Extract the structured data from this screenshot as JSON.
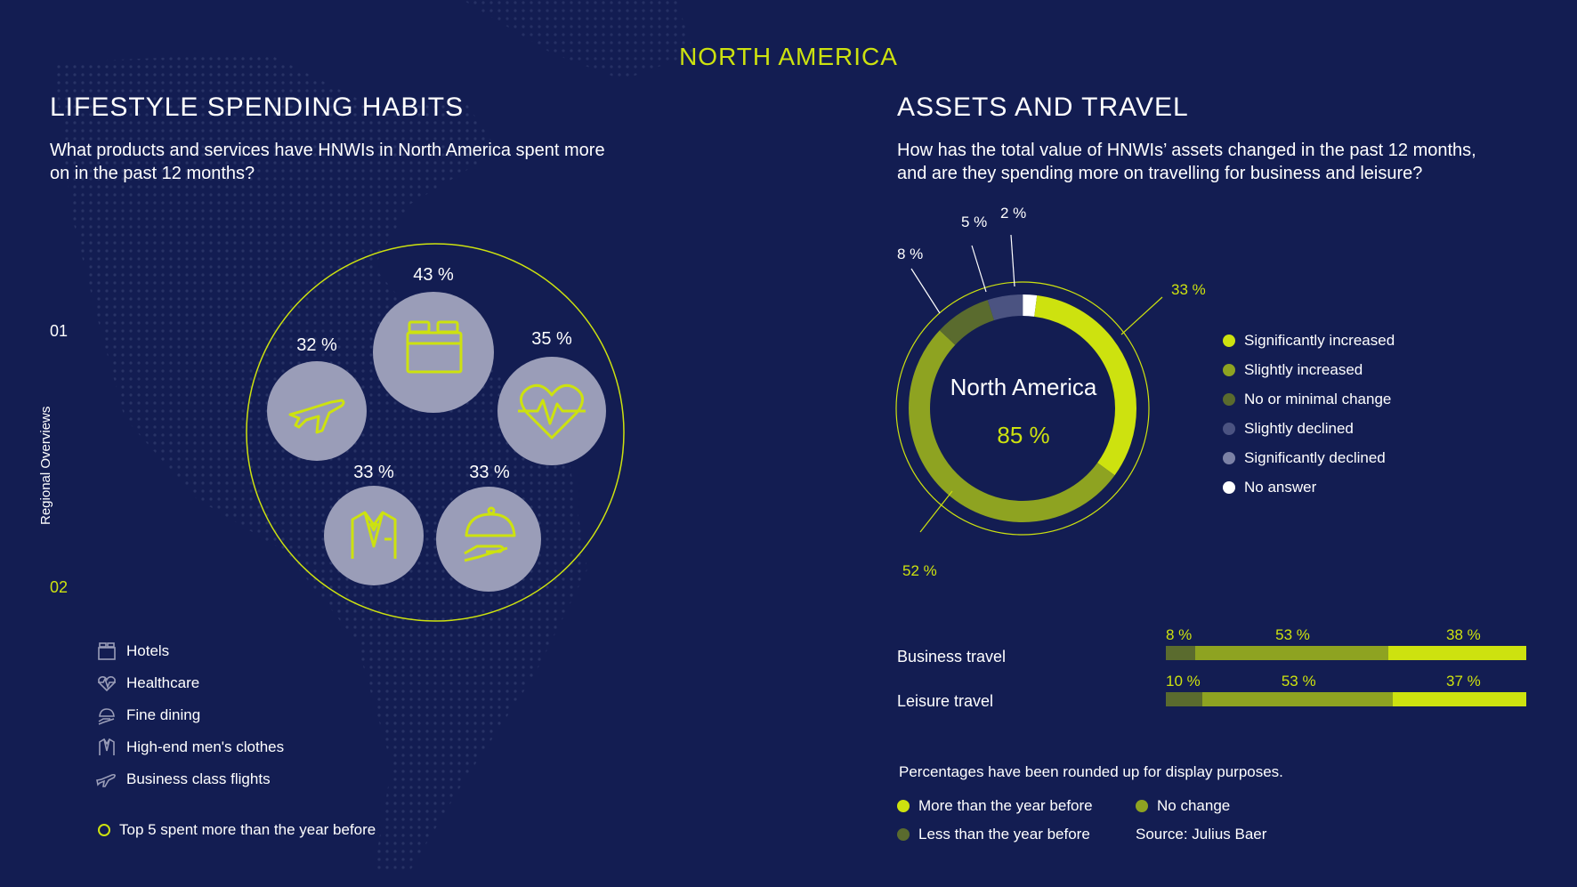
{
  "title": "NORTH AMERICA",
  "left": {
    "heading": "LIFESTYLE SPENDING HABITS",
    "question_line1": "What products and services have HNWIs in North America spent more",
    "question_line2": "on in the past 12 months?",
    "side_num_top": "01",
    "side_num_bottom": "02",
    "side_label": "Regional Overviews",
    "legend": [
      {
        "label": "Hotels",
        "icon": "hotel-icon"
      },
      {
        "label": "Healthcare",
        "icon": "healthcare-icon"
      },
      {
        "label": "Fine dining",
        "icon": "fine-dining-icon"
      },
      {
        "label": "High-end men's clothes",
        "icon": "suit-icon"
      },
      {
        "label": "Business class flights",
        "icon": "plane-icon"
      }
    ],
    "footnote": "Top 5 spent more than the year before"
  },
  "right": {
    "heading": "ASSETS AND TRAVEL",
    "question_line1": "How has the total value of HNWIs’ assets changed in the past 12 months,",
    "question_line2": "and are they spending more on travelling for business and leisure?",
    "donut_center_title": "North America",
    "donut_center_value": "85 %",
    "legend": [
      {
        "label": "Significantly increased",
        "color": "#cde20f"
      },
      {
        "label": "Slightly increased",
        "color": "#8ea321"
      },
      {
        "label": "No or minimal change",
        "color": "#5a6b2e"
      },
      {
        "label": "Slightly declined",
        "color": "#4b5381"
      },
      {
        "label": "Significantly declined",
        "color": "#7c82a6"
      },
      {
        "label": "No answer",
        "color": "#ffffff"
      }
    ],
    "bars_legend": [
      {
        "label": "More than the year before",
        "color": "#cde20f"
      },
      {
        "label": "No change",
        "color": "#8ea321"
      },
      {
        "label": "Less than the year before",
        "color": "#5a6b2e"
      }
    ],
    "note": "Percentages have been rounded up for display purposes.",
    "source": "Source: Julius Baer"
  },
  "chart_data": [
    {
      "type": "bubble",
      "title": "LIFESTYLE SPENDING HABITS",
      "categories": [
        "Hotels",
        "Healthcare",
        "Business class flights",
        "High-end men's clothes",
        "Fine dining"
      ],
      "values": [
        43,
        35,
        32,
        33,
        33
      ],
      "labels": [
        "43 %",
        "35 %",
        "32 %",
        "33 %",
        "33 %"
      ]
    },
    {
      "type": "pie",
      "title": "North America",
      "center_value": "85 %",
      "categories": [
        "Significantly increased",
        "Slightly increased",
        "No or minimal change",
        "Slightly declined",
        "Significantly declined",
        "No answer"
      ],
      "values": [
        33,
        52,
        8,
        5,
        0,
        2
      ],
      "labels": [
        "33 %",
        "52 %",
        "8 %",
        "5 %",
        "",
        "2 %"
      ],
      "colors": [
        "#cde20f",
        "#8ea321",
        "#5a6b2e",
        "#4b5381",
        "#7c82a6",
        "#ffffff"
      ]
    },
    {
      "type": "bar",
      "stacked": true,
      "orientation": "horizontal",
      "categories": [
        "Business travel",
        "Leisure travel"
      ],
      "series": [
        {
          "name": "Less than the year before",
          "values": [
            8,
            10
          ],
          "labels": [
            "8 %",
            "10 %"
          ],
          "color": "#5a6b2e"
        },
        {
          "name": "No change",
          "values": [
            53,
            53
          ],
          "labels": [
            "53 %",
            "53 %"
          ],
          "color": "#8ea321"
        },
        {
          "name": "More than the year before",
          "values": [
            38,
            37
          ],
          "labels": [
            "38 %",
            "37 %"
          ],
          "color": "#cde20f"
        }
      ]
    }
  ]
}
